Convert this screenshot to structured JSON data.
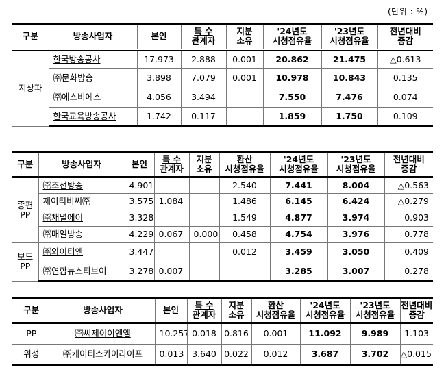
{
  "unit_note": "(단위 : %)",
  "table1": {
    "headers": [
      "구분",
      "방송사업자",
      "본인",
      "특 수|관계자",
      "지분|소유",
      "'24년도|시청점유율",
      "'23년도|시청점유율",
      "전년대비|증감"
    ],
    "group": "지상파",
    "rows": [
      {
        "name": "한국방송공사",
        "self": "17.973",
        "related": "2.888",
        "share": "0.001",
        "y24": "20.862",
        "y23": "21.475",
        "change": "△0.613"
      },
      {
        "name": "㈜문화방송",
        "self": "3.898",
        "related": "7.079",
        "share": "0.001",
        "y24": "10.978",
        "y23": "10.843",
        "change": "0.135"
      },
      {
        "name": "㈜에스비에스",
        "self": "4.056",
        "related": "3.494",
        "share": "",
        "y24": "7.550",
        "y23": "7.476",
        "change": "0.074"
      },
      {
        "name": "한국교육방송공사",
        "self": "1.742",
        "related": "0.117",
        "share": "",
        "y24": "1.859",
        "y23": "1.750",
        "change": "0.109"
      }
    ]
  },
  "table2": {
    "headers": [
      "구분",
      "방송사업자",
      "본인",
      "특 수|관계자",
      "지분|소유",
      "환산|시청점유율",
      "'24년도|시청점유율",
      "'23년도|시청점유율",
      "전년대비|증감"
    ],
    "groups": [
      {
        "label": "종편|PP",
        "rows": [
          {
            "name": "㈜조선방송",
            "self": "4.901",
            "related": "",
            "share": "",
            "conv": "2.540",
            "y24": "7.441",
            "y23": "8.004",
            "change": "△0.563"
          },
          {
            "name": "제이티비씨㈜",
            "self": "3.575",
            "related": "1.084",
            "share": "",
            "conv": "1.486",
            "y24": "6.145",
            "y23": "6.424",
            "change": "△0.279"
          },
          {
            "name": "㈜채널에이",
            "self": "3.328",
            "related": "",
            "share": "",
            "conv": "1.549",
            "y24": "4.877",
            "y23": "3.974",
            "change": "0.903"
          },
          {
            "name": "㈜매일방송",
            "self": "4.229",
            "related": "0.067",
            "share": "0.000",
            "conv": "0.458",
            "y24": "4.754",
            "y23": "3.976",
            "change": "0.778"
          }
        ]
      },
      {
        "label": "보도|PP",
        "rows": [
          {
            "name": "㈜와이티엔",
            "self": "3.447",
            "related": "",
            "share": "",
            "conv": "0.012",
            "y24": "3.459",
            "y23": "3.050",
            "change": "0.409"
          },
          {
            "name": "㈜연합뉴스티브이",
            "self": "3.278",
            "related": "0.007",
            "share": "",
            "conv": "",
            "y24": "3.285",
            "y23": "3.007",
            "change": "0.278"
          }
        ]
      }
    ]
  },
  "table3": {
    "headers": [
      "구분",
      "방송사업자",
      "본인",
      "특 수|관계자",
      "지분|소유",
      "환산|시청점유율",
      "'24년도|시청점유율",
      "'23년도|시청점유율",
      "전년대비|증감"
    ],
    "rows": [
      {
        "group": "PP",
        "name": "㈜씨제이이엔엠",
        "self": "10.257",
        "related": "0.018",
        "share": "0.816",
        "conv": "0.001",
        "y24": "11.092",
        "y23": "9.989",
        "change": "1.103"
      },
      {
        "group": "위성",
        "name": "㈜케이티스카이라이프",
        "self": "0.013",
        "related": "3.640",
        "share": "0.022",
        "conv": "0.012",
        "y24": "3.687",
        "y23": "3.702",
        "change": "△0.015"
      }
    ]
  }
}
